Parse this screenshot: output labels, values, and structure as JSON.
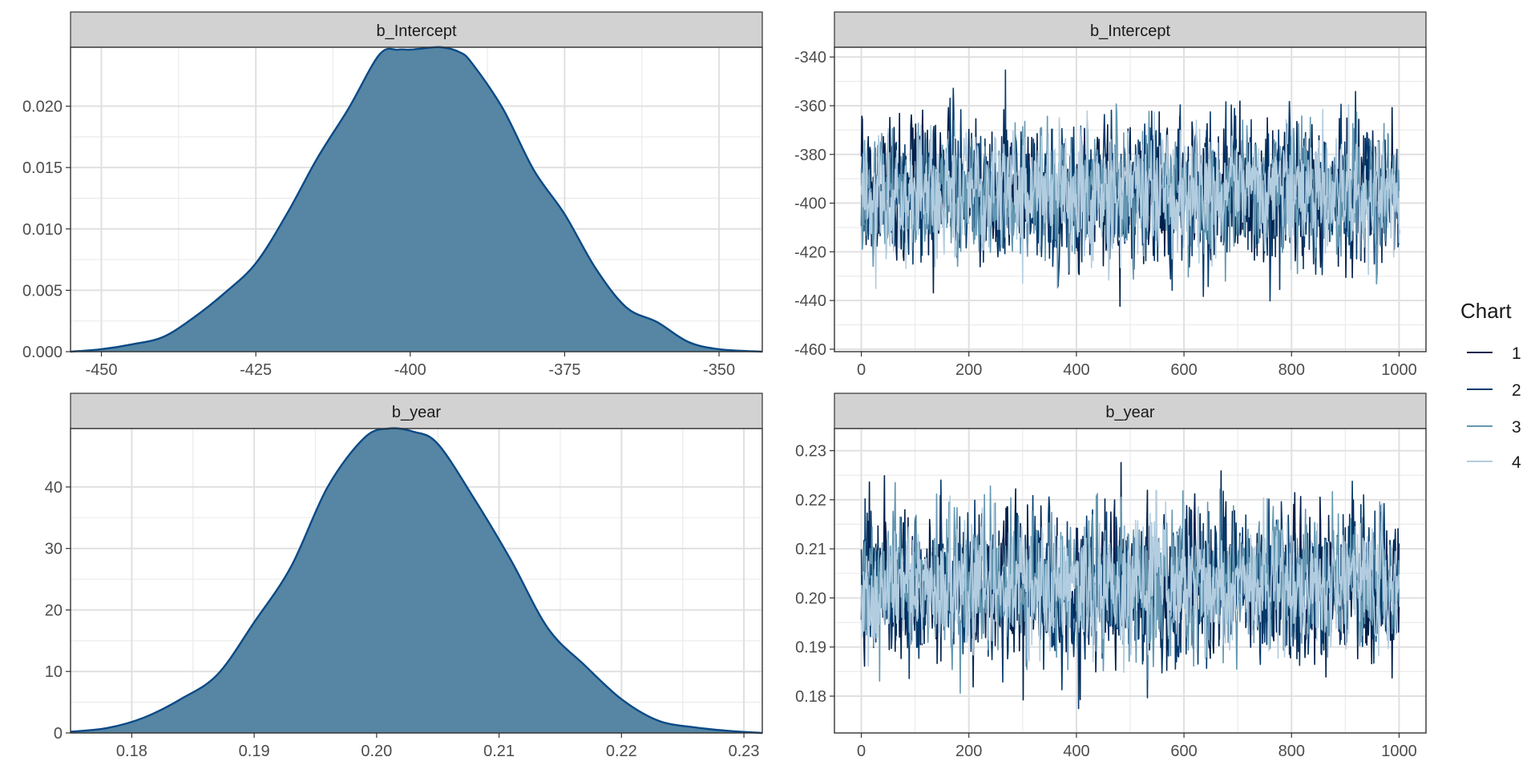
{
  "legend": {
    "title": "Chart",
    "entries": [
      {
        "label": "1",
        "color": "#011f4b"
      },
      {
        "label": "2",
        "color": "#03396c"
      },
      {
        "label": "3",
        "color": "#6497b1"
      },
      {
        "label": "4",
        "color": "#b3cde0"
      }
    ]
  },
  "chart_data": [
    {
      "type": "area",
      "strip": "b_Intercept",
      "grid": true,
      "fill_color": "#5686a4",
      "line_color": "#0b4a86",
      "xlim": [
        -455,
        -343
      ],
      "ylim": [
        0,
        0.0248
      ],
      "xticks": [
        -450,
        -425,
        -400,
        -375,
        -350
      ],
      "xticklabels": [
        "-450",
        "-425",
        "-400",
        "-375",
        "-350"
      ],
      "yticks": [
        0,
        0.005,
        0.01,
        0.015,
        0.02
      ],
      "yticklabels": [
        "0.000",
        "0.005",
        "0.010",
        "0.015",
        "0.020"
      ],
      "x": [
        -455,
        -450,
        -445,
        -440,
        -435,
        -430,
        -425,
        -420,
        -415,
        -410,
        -405,
        -402,
        -400,
        -398,
        -395,
        -392,
        -390,
        -385,
        -380,
        -375,
        -370,
        -365,
        -360,
        -355,
        -350,
        -343
      ],
      "y": [
        0,
        0.0002,
        0.0006,
        0.0012,
        0.0028,
        0.0048,
        0.0072,
        0.0112,
        0.0158,
        0.0198,
        0.0242,
        0.0246,
        0.0246,
        0.0247,
        0.0248,
        0.0244,
        0.0235,
        0.0198,
        0.0148,
        0.0112,
        0.0068,
        0.0036,
        0.0024,
        0.0008,
        0.0002,
        0
      ]
    },
    {
      "type": "line",
      "strip": "b_Intercept",
      "grid": true,
      "xlim": [
        -50,
        1050
      ],
      "ylim": [
        -461,
        -336
      ],
      "xticks": [
        0,
        200,
        400,
        600,
        800,
        1000
      ],
      "xticklabels": [
        "0",
        "200",
        "400",
        "600",
        "800",
        "1000"
      ],
      "yticks": [
        -460,
        -440,
        -420,
        -400,
        -380,
        -360,
        -340
      ],
      "yticklabels": [
        "-460",
        "-440",
        "-420",
        "-400",
        "-380",
        "-360",
        "-340"
      ],
      "series": [
        {
          "name": "1",
          "mean": -396,
          "sd": 14,
          "color": "#011f4b"
        },
        {
          "name": "2",
          "mean": -396,
          "sd": 14,
          "color": "#03396c"
        },
        {
          "name": "3",
          "mean": -396,
          "sd": 13,
          "color": "#6497b1"
        },
        {
          "name": "4",
          "mean": -396,
          "sd": 12,
          "color": "#b3cde0"
        }
      ],
      "iterations": 1000
    },
    {
      "type": "area",
      "strip": "b_year",
      "grid": true,
      "fill_color": "#5686a4",
      "line_color": "#0b4a86",
      "xlim": [
        0.175,
        0.2315
      ],
      "ylim": [
        0,
        49.5
      ],
      "xticks": [
        0.18,
        0.19,
        0.2,
        0.21,
        0.22,
        0.23
      ],
      "xticklabels": [
        "0.18",
        "0.19",
        "0.20",
        "0.21",
        "0.22",
        "0.23"
      ],
      "yticks": [
        0,
        10,
        20,
        30,
        40
      ],
      "yticklabels": [
        "0",
        "10",
        "20",
        "30",
        "40"
      ],
      "x": [
        0.175,
        0.178,
        0.181,
        0.184,
        0.187,
        0.19,
        0.193,
        0.196,
        0.199,
        0.201,
        0.203,
        0.205,
        0.208,
        0.211,
        0.214,
        0.217,
        0.22,
        0.223,
        0.226,
        0.229,
        0.2315
      ],
      "y": [
        0.2,
        0.8,
        2.5,
        5.5,
        9.5,
        18,
        27,
        40,
        48,
        49.5,
        49,
        47,
        38,
        28,
        17,
        11,
        5.5,
        2,
        0.9,
        0.3,
        0
      ]
    },
    {
      "type": "line",
      "strip": "b_year",
      "grid": true,
      "xlim": [
        -50,
        1050
      ],
      "ylim": [
        0.1725,
        0.2345
      ],
      "xticks": [
        0,
        200,
        400,
        600,
        800,
        1000
      ],
      "xticklabels": [
        "0",
        "200",
        "400",
        "600",
        "800",
        "1000"
      ],
      "yticks": [
        0.18,
        0.19,
        0.2,
        0.21,
        0.22,
        0.23
      ],
      "yticklabels": [
        "0.18",
        "0.19",
        "0.20",
        "0.21",
        "0.22",
        "0.23"
      ],
      "series": [
        {
          "name": "1",
          "mean": 0.2025,
          "sd": 0.0075,
          "color": "#011f4b"
        },
        {
          "name": "2",
          "mean": 0.2025,
          "sd": 0.0075,
          "color": "#03396c"
        },
        {
          "name": "3",
          "mean": 0.2025,
          "sd": 0.007,
          "color": "#6497b1"
        },
        {
          "name": "4",
          "mean": 0.2025,
          "sd": 0.0065,
          "color": "#b3cde0"
        }
      ],
      "iterations": 1000
    }
  ]
}
